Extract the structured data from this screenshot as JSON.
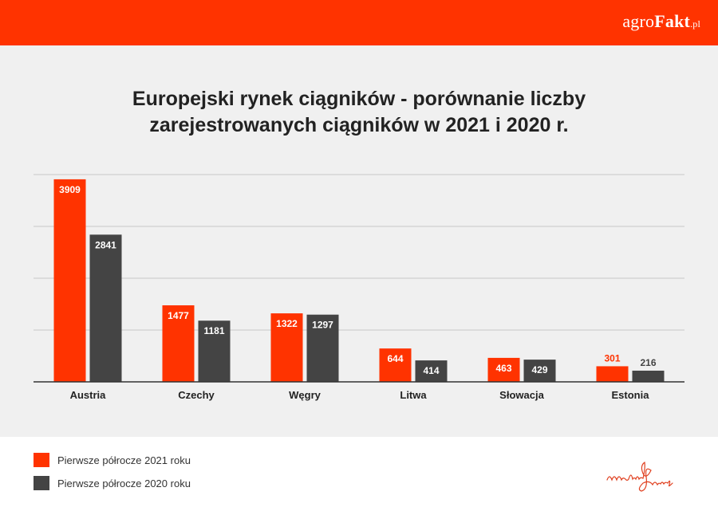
{
  "brand": {
    "part1": "agro",
    "part2": "Fakt",
    "part3": ".pl"
  },
  "colors": {
    "accent": "#ff3300",
    "series_2021": "#ff3300",
    "series_2020": "#444444",
    "panel": "#f0f0f0"
  },
  "chart_data": {
    "type": "bar",
    "title": "Europejski rynek ciągników - porównanie liczby zarejestrowanych ciągników w 2021 i 2020 r.",
    "title_lines": [
      "Europejski rynek ciągników - porównanie liczby",
      "zarejestrowanych ciągników w 2021 i 2020 r."
    ],
    "categories": [
      "Austria",
      "Czechy",
      "Węgry",
      "Litwa",
      "Słowacja",
      "Estonia"
    ],
    "series": [
      {
        "name": "Pierwsze półrocze 2021 roku",
        "values": [
          3909,
          1477,
          1322,
          644,
          463,
          301
        ],
        "color": "#ff3300"
      },
      {
        "name": "Pierwsze półrocze 2020 roku",
        "values": [
          2841,
          1181,
          1297,
          414,
          429,
          216
        ],
        "color": "#444444"
      }
    ],
    "ylim": [
      0,
      4000
    ],
    "grid": true,
    "legend_position": "bottom-left",
    "xlabel": "",
    "ylabel": ""
  },
  "signature": {
    "text": "marlin&jacobs"
  }
}
